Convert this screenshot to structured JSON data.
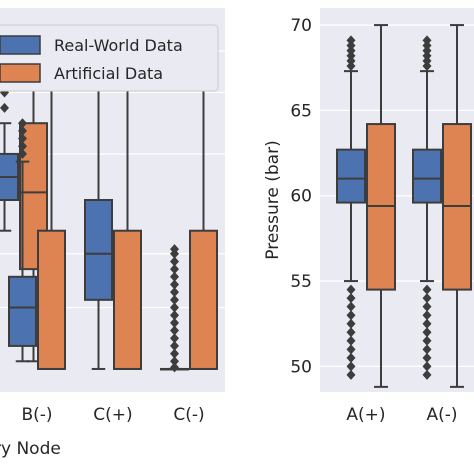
{
  "chart_data": [
    {
      "type": "box",
      "title": "",
      "xlabel": "ry Node",
      "ylabel": "",
      "ylim": [
        47,
        72
      ],
      "grid": true,
      "legend_position": "top-left",
      "categories": [
        "",
        "B(-)",
        "C(+)",
        "C(-)"
      ],
      "series": [
        {
          "name": "Real-World Data",
          "color": "#4c72b0",
          "boxes": [
            {
              "category": "",
              "whisker_low": 57.5,
              "q1": 59.5,
              "median": 61.0,
              "q3": 62.5,
              "whisker_high": 64.5,
              "outliers": [
                65.5,
                66.5,
                67.5
              ]
            },
            {
              "category": "B(-)",
              "whisker_low": 49.0,
              "q1": 50.0,
              "median": 52.5,
              "q3": 54.5,
              "whisker_high": 62.0,
              "outliers": [
                62.5,
                63.0,
                63.5,
                64.0,
                64.5
              ]
            },
            {
              "category": "C(+)",
              "whisker_low": 48.5,
              "q1": 53.0,
              "median": 56.0,
              "q3": 59.5,
              "whisker_high": 69.0,
              "outliers": []
            },
            {
              "category": "C(-)",
              "whisker_low": 48.5,
              "q1": 48.5,
              "median": 48.5,
              "q3": 48.5,
              "whisker_high": 48.5,
              "outliers": [
                48.6,
                49.0,
                49.5,
                50.0,
                50.5,
                51.0,
                51.5,
                52.0,
                52.5,
                53.0,
                53.5,
                54.0,
                54.5,
                55.0,
                55.5,
                56.0,
                56.3
              ]
            }
          ]
        },
        {
          "name": "Artificial Data",
          "color": "#dd8452",
          "boxes": [
            {
              "category": "",
              "whisker_low": 49.0,
              "q1": 55.0,
              "median": 60.0,
              "q3": 64.5,
              "whisker_high": 70.0,
              "outliers": []
            },
            {
              "category": "B(-)",
              "whisker_low": 48.5,
              "q1": 48.5,
              "median": 48.5,
              "q3": 57.5,
              "whisker_high": 70.0,
              "outliers": []
            },
            {
              "category": "C(+)",
              "whisker_low": 48.5,
              "q1": 48.5,
              "median": 48.5,
              "q3": 57.5,
              "whisker_high": 70.0,
              "outliers": []
            },
            {
              "category": "C(-)",
              "whisker_low": 48.5,
              "q1": 48.5,
              "median": 48.5,
              "q3": 57.5,
              "whisker_high": 70.0,
              "outliers": []
            }
          ]
        }
      ]
    },
    {
      "type": "box",
      "title": "",
      "xlabel": "",
      "ylabel": "Pressure (bar)",
      "ylim": [
        48.5,
        71
      ],
      "yticks": [
        50,
        55,
        60,
        65,
        70
      ],
      "grid": true,
      "categories": [
        "A(+)",
        "A(-)"
      ],
      "series": [
        {
          "name": "Real-World Data",
          "color": "#4c72b0",
          "boxes": [
            {
              "category": "A(+)",
              "whisker_low": 55.0,
              "q1": 59.6,
              "median": 61.0,
              "q3": 62.7,
              "whisker_high": 67.3,
              "outliers": [
                49.5,
                50.0,
                50.5,
                51.0,
                51.5,
                52.0,
                52.5,
                53.0,
                53.5,
                54.0,
                54.5,
                67.6,
                67.9,
                68.2,
                68.5,
                68.8,
                69.1
              ]
            },
            {
              "category": "A(-)",
              "whisker_low": 55.0,
              "q1": 59.6,
              "median": 61.0,
              "q3": 62.7,
              "whisker_high": 67.3,
              "outliers": [
                49.5,
                50.0,
                50.5,
                51.0,
                51.5,
                52.0,
                52.5,
                53.0,
                53.5,
                54.0,
                54.5,
                67.6,
                67.9,
                68.2,
                68.5,
                68.8,
                69.1
              ]
            }
          ]
        },
        {
          "name": "Artificial Data",
          "color": "#dd8452",
          "boxes": [
            {
              "category": "A(+)",
              "whisker_low": 48.8,
              "q1": 54.5,
              "median": 59.4,
              "q3": 64.2,
              "whisker_high": 70.0,
              "outliers": []
            },
            {
              "category": "A(-)",
              "whisker_low": 48.8,
              "q1": 54.5,
              "median": 59.4,
              "q3": 64.2,
              "whisker_high": 70.0,
              "outliers": []
            }
          ]
        }
      ]
    }
  ]
}
